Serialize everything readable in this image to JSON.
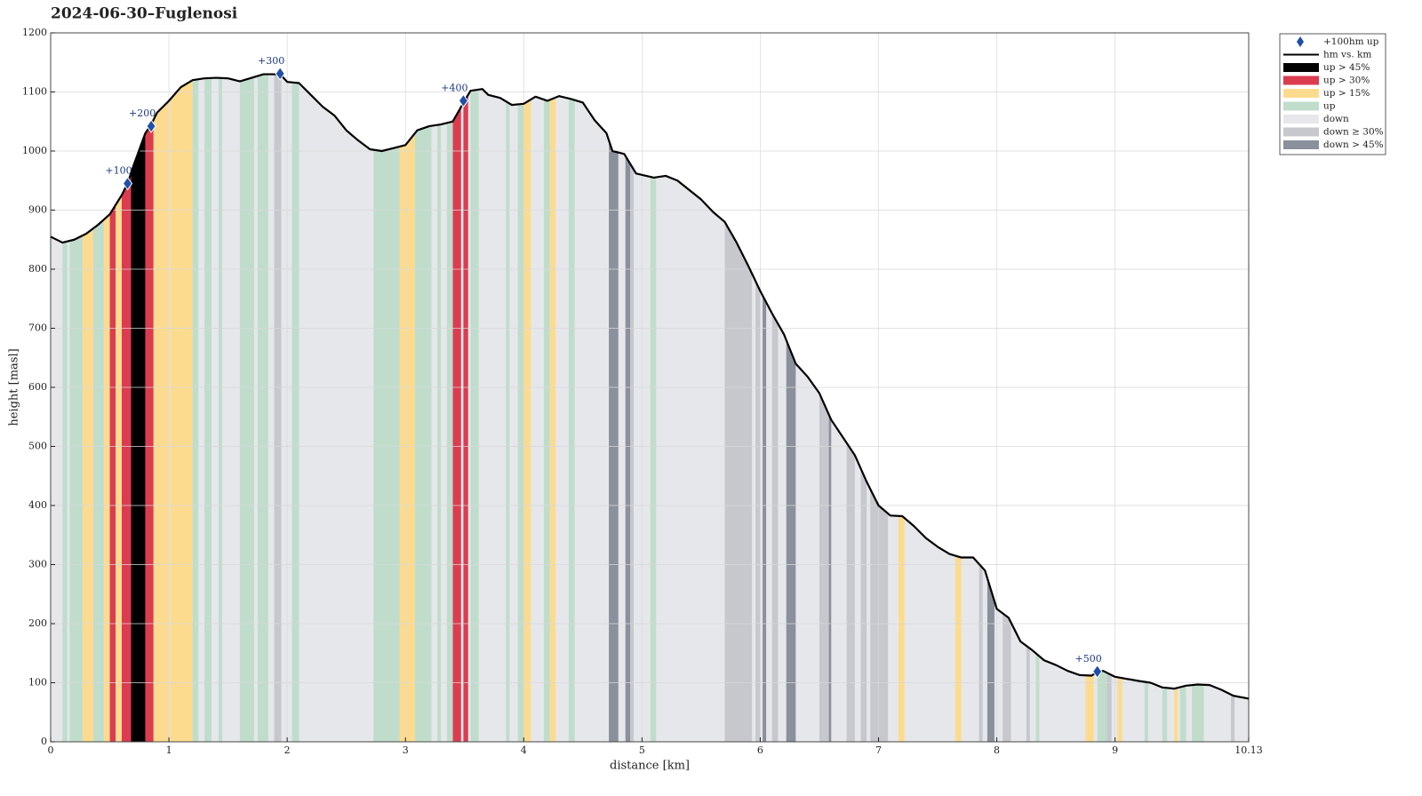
{
  "chart_data": {
    "type": "line",
    "title": "2024-06-30–Fuglenosi",
    "xlabel": "distance [km]",
    "ylabel": "height [masl]",
    "xlim": [
      0,
      10.13
    ],
    "xticks": [
      0,
      1,
      2,
      3,
      4,
      5,
      6,
      7,
      8,
      9,
      10.13
    ],
    "ylim": [
      0,
      1200
    ],
    "yticks": [
      0,
      100,
      200,
      300,
      400,
      500,
      600,
      700,
      800,
      900,
      1000,
      1100,
      1200
    ],
    "grid": true,
    "legend": "outside-upper-right",
    "markers": {
      "name": "+100hm up",
      "color": "#1f4fa8",
      "x": [
        0.65,
        0.85,
        1.94,
        3.49,
        8.85
      ],
      "values": [
        945,
        1042,
        1131,
        1085,
        119
      ],
      "labels": [
        "+100",
        "+200",
        "+300",
        "+400",
        "+500"
      ]
    },
    "series": [
      {
        "name": "hm vs. km",
        "color": "#000000",
        "x": [
          0,
          0.1,
          0.2,
          0.3,
          0.4,
          0.5,
          0.6,
          0.65,
          0.7,
          0.8,
          0.85,
          0.9,
          1.0,
          1.1,
          1.2,
          1.3,
          1.4,
          1.5,
          1.6,
          1.7,
          1.8,
          1.9,
          1.95,
          2.0,
          2.1,
          2.2,
          2.3,
          2.4,
          2.5,
          2.6,
          2.7,
          2.8,
          2.9,
          3.0,
          3.1,
          3.2,
          3.3,
          3.4,
          3.5,
          3.55,
          3.65,
          3.7,
          3.8,
          3.9,
          4.0,
          4.1,
          4.2,
          4.3,
          4.4,
          4.5,
          4.6,
          4.7,
          4.75,
          4.85,
          4.95,
          5.1,
          5.2,
          5.3,
          5.5,
          5.6,
          5.7,
          5.8,
          5.9,
          6.0,
          6.1,
          6.2,
          6.3,
          6.4,
          6.5,
          6.6,
          6.7,
          6.8,
          6.9,
          7.0,
          7.1,
          7.2,
          7.3,
          7.4,
          7.5,
          7.6,
          7.7,
          7.8,
          7.9,
          8.0,
          8.1,
          8.2,
          8.3,
          8.4,
          8.5,
          8.6,
          8.7,
          8.8,
          8.85,
          8.9,
          9.0,
          9.2,
          9.3,
          9.4,
          9.5,
          9.6,
          9.7,
          9.8,
          9.9,
          10.0,
          10.13
        ],
        "values": [
          855,
          845,
          850,
          860,
          875,
          893,
          925,
          945,
          975,
          1030,
          1045,
          1065,
          1085,
          1108,
          1120,
          1123,
          1124,
          1123,
          1118,
          1124,
          1130,
          1130,
          1128,
          1117,
          1115,
          1095,
          1075,
          1060,
          1035,
          1018,
          1003,
          1000,
          1005,
          1010,
          1035,
          1042,
          1045,
          1050,
          1085,
          1102,
          1105,
          1095,
          1090,
          1078,
          1080,
          1092,
          1085,
          1093,
          1088,
          1082,
          1052,
          1030,
          1000,
          995,
          962,
          955,
          958,
          950,
          918,
          897,
          880,
          845,
          805,
          763,
          725,
          690,
          640,
          618,
          590,
          545,
          515,
          485,
          440,
          400,
          383,
          382,
          365,
          345,
          330,
          318,
          312,
          312,
          290,
          225,
          210,
          170,
          155,
          138,
          130,
          120,
          113,
          112,
          118,
          120,
          110,
          103,
          100,
          92,
          90,
          95,
          97,
          96,
          88,
          78,
          73
        ]
      }
    ],
    "zones": [
      {
        "name": "up > 45%",
        "color": "#000000",
        "ranges": [
          [
            0.68,
            0.8
          ]
        ]
      },
      {
        "name": "up > 30%",
        "color": "#dc3c50",
        "ranges": [
          [
            0.5,
            0.55
          ],
          [
            0.6,
            0.68
          ],
          [
            0.8,
            0.87
          ],
          [
            3.4,
            3.47
          ],
          [
            3.49,
            3.53
          ]
        ]
      },
      {
        "name": "up > 15%",
        "color": "#fddb8e",
        "ranges": [
          [
            0.27,
            0.36
          ],
          [
            0.45,
            0.5
          ],
          [
            0.55,
            0.6
          ],
          [
            0.87,
            1.0
          ],
          [
            1.01,
            1.2
          ],
          [
            2.95,
            3.08
          ],
          [
            4.0,
            4.06
          ],
          [
            4.22,
            4.27
          ],
          [
            7.17,
            7.22
          ],
          [
            7.65,
            7.7
          ],
          [
            8.75,
            8.82
          ],
          [
            9.02,
            9.06
          ],
          [
            9.5,
            9.53
          ]
        ]
      },
      {
        "name": "up",
        "color": "#c0ddcc",
        "ranges": [
          [
            0.1,
            0.14
          ],
          [
            0.16,
            0.27
          ],
          [
            0.36,
            0.45
          ],
          [
            1.2,
            1.25
          ],
          [
            1.3,
            1.36
          ],
          [
            1.42,
            1.45
          ],
          [
            1.6,
            1.72
          ],
          [
            1.75,
            1.84
          ],
          [
            2.04,
            2.1
          ],
          [
            2.73,
            2.95
          ],
          [
            3.08,
            3.22
          ],
          [
            3.27,
            3.3
          ],
          [
            3.35,
            3.4
          ],
          [
            3.55,
            3.62
          ],
          [
            3.85,
            3.88
          ],
          [
            3.95,
            4.0
          ],
          [
            4.17,
            4.22
          ],
          [
            4.38,
            4.43
          ],
          [
            5.07,
            5.12
          ],
          [
            8.33,
            8.36
          ],
          [
            8.85,
            8.93
          ],
          [
            9.25,
            9.28
          ],
          [
            9.4,
            9.44
          ],
          [
            9.55,
            9.6
          ],
          [
            9.65,
            9.75
          ]
        ]
      },
      {
        "name": "down",
        "color": "#e6e7ea",
        "ranges": []
      },
      {
        "name": "down ≥ 30%",
        "color": "#c6c8ce",
        "ranges": [
          [
            1.89,
            1.95
          ],
          [
            4.9,
            4.93
          ],
          [
            5.7,
            5.93
          ],
          [
            5.96,
            6.0
          ],
          [
            6.1,
            6.15
          ],
          [
            6.5,
            6.58
          ],
          [
            6.73,
            6.8
          ],
          [
            6.85,
            6.9
          ],
          [
            6.93,
            7.08
          ],
          [
            7.85,
            7.88
          ],
          [
            8.05,
            8.12
          ],
          [
            8.25,
            8.28
          ],
          [
            8.93,
            8.97
          ],
          [
            9.98,
            10.01
          ]
        ]
      },
      {
        "name": "down > 45%",
        "color": "#8a909c",
        "ranges": [
          [
            4.72,
            4.8
          ],
          [
            4.86,
            4.9
          ],
          [
            6.02,
            6.05
          ],
          [
            6.22,
            6.3
          ],
          [
            6.58,
            6.6
          ],
          [
            7.92,
            7.98
          ]
        ]
      }
    ]
  }
}
